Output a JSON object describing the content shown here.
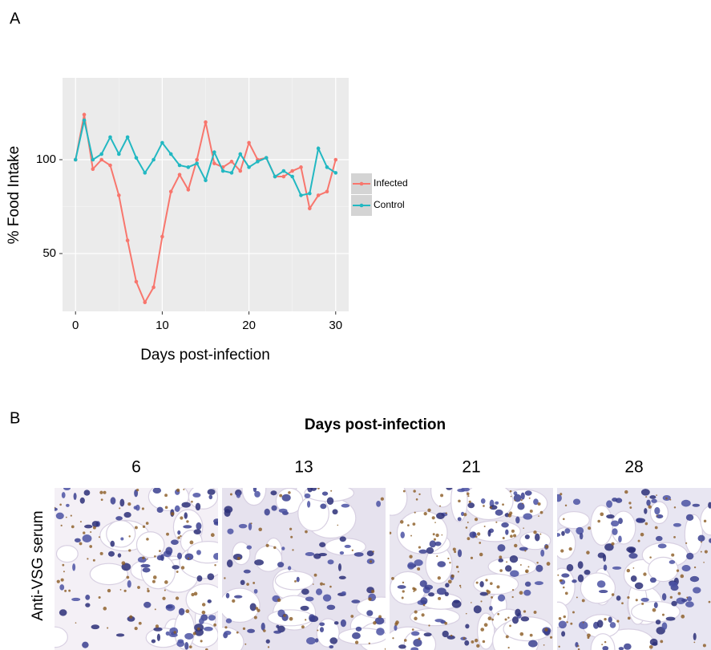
{
  "panel_a_label": "A",
  "chart_data": {
    "type": "line",
    "x_label": "Days post-infection",
    "y_label": "% Food Intake",
    "x": [
      0,
      1,
      2,
      3,
      4,
      5,
      6,
      7,
      8,
      9,
      10,
      11,
      12,
      13,
      14,
      15,
      16,
      17,
      18,
      19,
      20,
      21,
      22,
      23,
      24,
      25,
      26,
      27,
      28,
      29,
      30
    ],
    "series": [
      {
        "name": "Infected",
        "color": "#f8766d",
        "values": [
          100,
          124,
          95,
          100,
          97,
          81,
          57,
          35,
          24,
          32,
          59,
          83,
          92,
          84,
          100,
          120,
          98,
          96,
          99,
          94,
          109,
          100,
          101,
          91,
          91,
          94,
          96,
          74,
          81,
          83,
          100
        ]
      },
      {
        "name": "Control",
        "color": "#22b8c2",
        "values": [
          100,
          121,
          100,
          103,
          112,
          103,
          112,
          101,
          93,
          100,
          109,
          103,
          97,
          96,
          98,
          89,
          104,
          94,
          93,
          103,
          96,
          99,
          101,
          91,
          94,
          91,
          81,
          82,
          106,
          96,
          93
        ]
      }
    ],
    "xlim": [
      -1.5,
      31.5
    ],
    "ylim": [
      19.2,
      143.6
    ],
    "xticks": [
      0,
      10,
      20,
      30
    ],
    "yticks": [
      50,
      100
    ],
    "grid": true,
    "legend": "right"
  },
  "panel_b": {
    "label": "B",
    "title": "Days post-infection",
    "columns": [
      "6",
      "13",
      "21",
      "28"
    ],
    "row_label": "Anti-VSG serum"
  }
}
